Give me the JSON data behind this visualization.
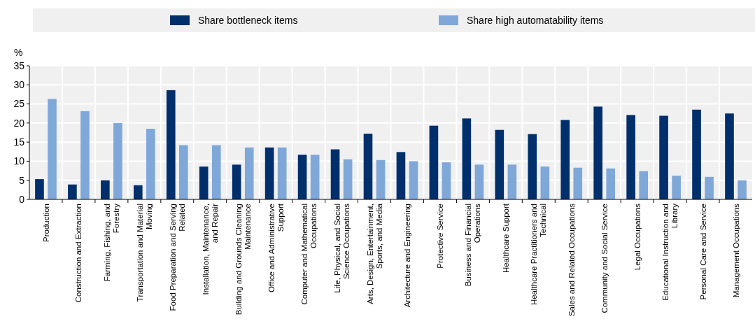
{
  "chart_data": {
    "type": "bar",
    "ylabel": "%",
    "categories": [
      "Production",
      "Construction and Extraction",
      "Farming, Fishing, and Forestry",
      "Transportation and Material Moving",
      "Food Preparation and Serving Related",
      "Installation, Maintenance, and Repair",
      "Building and Grounds Cleaning Maintenance",
      "Office and Administrative Support",
      "Computer and Mathematical Occupations",
      "Life, Physical, and Social Science Occupations",
      "Arts, Design, Entertainment, Sports, and Media",
      "Architecture and Engineering",
      "Protective Service",
      "Business and Financial Operations",
      "Healthcare Support",
      "Healthcare Practitioners and Technical",
      "Sales and Related Occupations",
      "Community and Social Service",
      "Legal Occupations",
      "Educational Instruction and Library",
      "Personal Care and Service",
      "Management Occupations"
    ],
    "series": [
      {
        "name": "Share bottleneck items",
        "color": "#002f6c",
        "values": [
          5.3,
          3.9,
          5.0,
          3.7,
          28.6,
          8.6,
          9.1,
          13.6,
          11.7,
          13.1,
          17.2,
          12.4,
          19.3,
          21.2,
          18.2,
          17.1,
          20.8,
          24.3,
          22.1,
          21.9,
          23.5,
          22.5
        ]
      },
      {
        "name": "Share high automatability items",
        "color": "#7fa8d9",
        "values": [
          26.3,
          23.1,
          20.0,
          18.5,
          14.2,
          14.2,
          13.6,
          13.6,
          11.7,
          10.5,
          10.3,
          10.0,
          9.7,
          9.1,
          9.1,
          8.6,
          8.3,
          8.1,
          7.4,
          6.2,
          5.9,
          5.0
        ]
      }
    ],
    "ylim": [
      0,
      35
    ],
    "yticks": [
      0,
      5,
      10,
      15,
      20,
      25,
      30,
      35
    ],
    "grid": true,
    "legend": "top"
  }
}
